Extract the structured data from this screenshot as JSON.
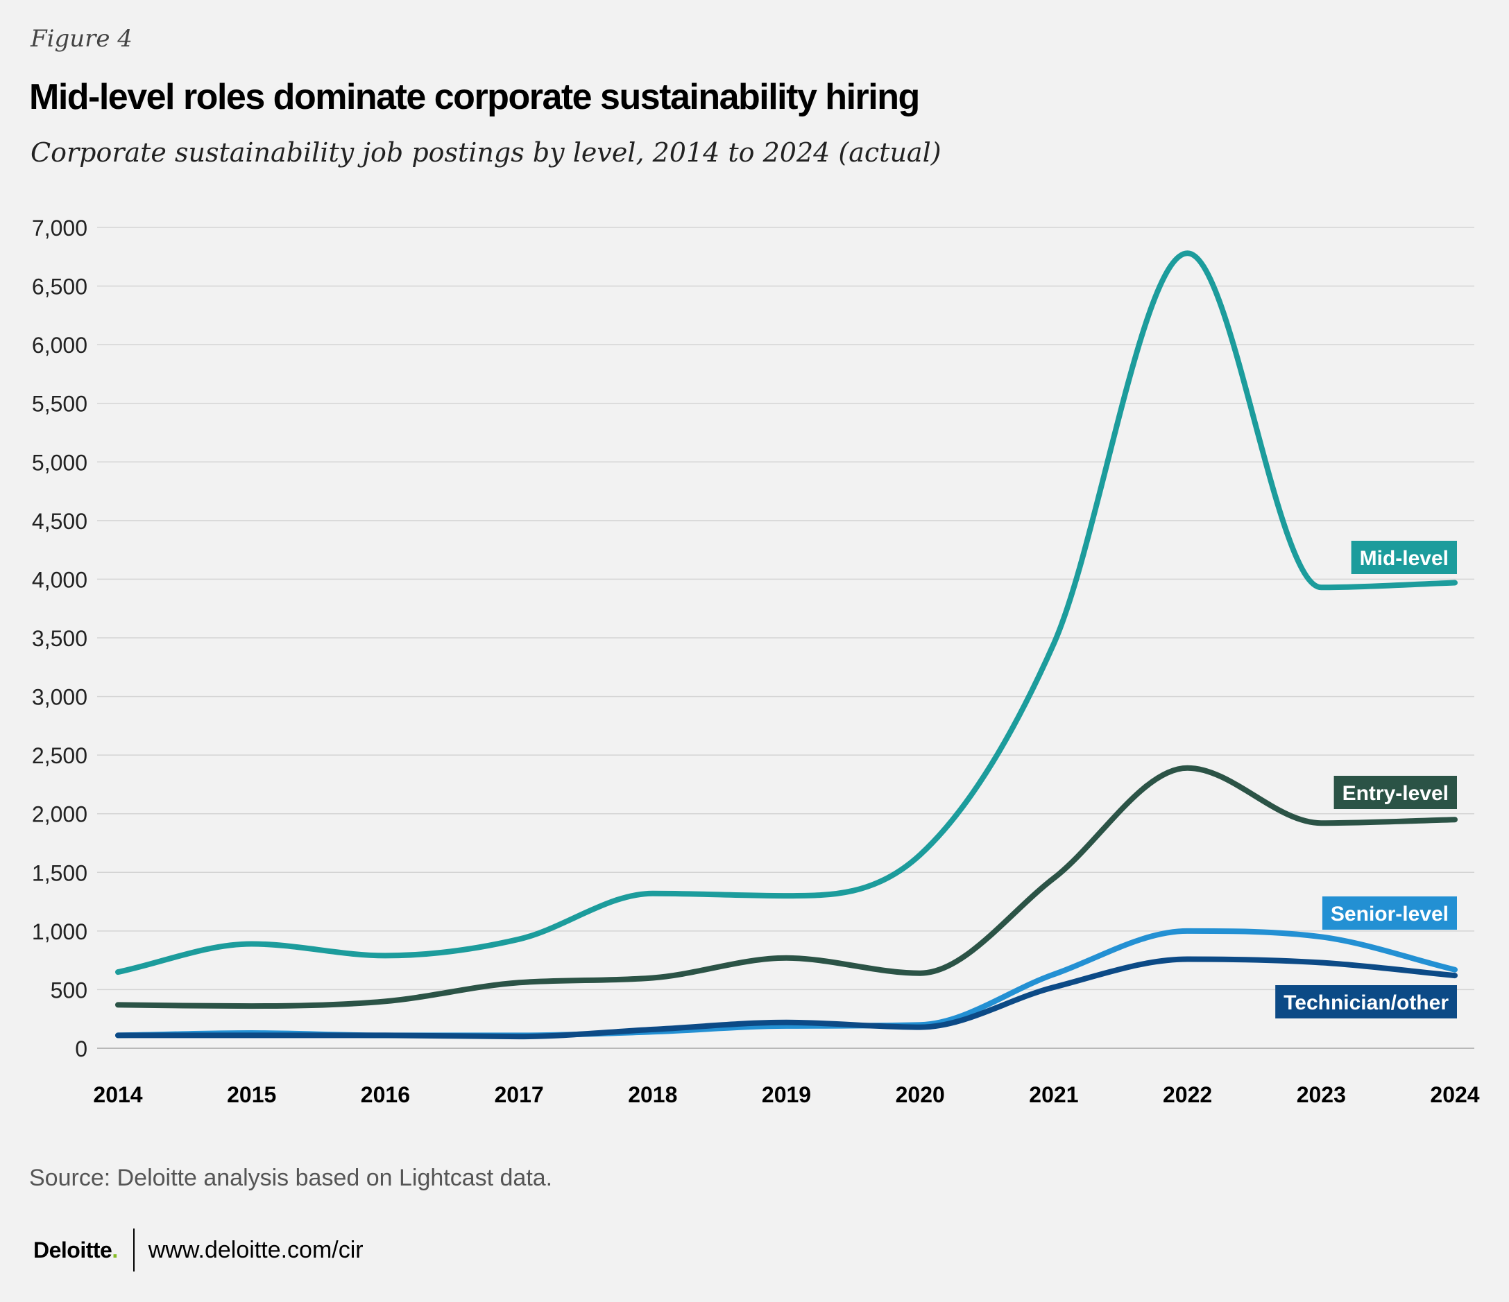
{
  "figure_label": "Figure 4",
  "title": "Mid-level roles dominate corporate sustainability hiring",
  "subtitle": "Corporate sustainability job postings by level, 2014 to 2024 (actual)",
  "source": "Source: Deloitte analysis based on Lightcast data.",
  "footer": {
    "logo_text": "Deloitte",
    "logo_dot": ".",
    "url": "www.deloitte.com/cir"
  },
  "colors": {
    "mid_level": "#1c9c9c",
    "entry_level": "#2b5346",
    "senior_level": "#2390d3",
    "technician_other": "#0c4a86",
    "grid": "#d4d4d4",
    "background": "#f2f2f2"
  },
  "chart_data": {
    "type": "line",
    "title": "Mid-level roles dominate corporate sustainability hiring",
    "xlabel": "",
    "ylabel": "",
    "x": [
      "2014",
      "2015",
      "2016",
      "2017",
      "2018",
      "2019",
      "2020",
      "2021",
      "2022",
      "2023",
      "2024"
    ],
    "ylim": [
      0,
      7000
    ],
    "yticks": [
      0,
      500,
      1000,
      1500,
      2000,
      2500,
      3000,
      3500,
      4000,
      4500,
      5000,
      5500,
      6000,
      6500,
      7000
    ],
    "ytick_labels": [
      "0",
      "500",
      "1,000",
      "1,500",
      "2,000",
      "2,500",
      "3,000",
      "3,500",
      "4,000",
      "4,500",
      "5,000",
      "5,500",
      "6,000",
      "6,500",
      "7,000"
    ],
    "grid": true,
    "legend": "inline labels at right end of each line",
    "series": [
      {
        "name": "Mid-level",
        "color": "#1c9c9c",
        "values": [
          650,
          890,
          790,
          930,
          1320,
          1300,
          1650,
          3450,
          6780,
          3930,
          3970
        ]
      },
      {
        "name": "Entry-level",
        "color": "#2b5346",
        "values": [
          370,
          360,
          400,
          560,
          600,
          770,
          640,
          1450,
          2390,
          1920,
          1950
        ]
      },
      {
        "name": "Senior-level",
        "color": "#2390d3",
        "values": [
          110,
          130,
          110,
          110,
          140,
          190,
          200,
          630,
          1000,
          950,
          670
        ]
      },
      {
        "name": "Technician/other",
        "color": "#0c4a86",
        "values": [
          110,
          110,
          110,
          100,
          160,
          220,
          180,
          520,
          760,
          730,
          620
        ]
      }
    ]
  }
}
